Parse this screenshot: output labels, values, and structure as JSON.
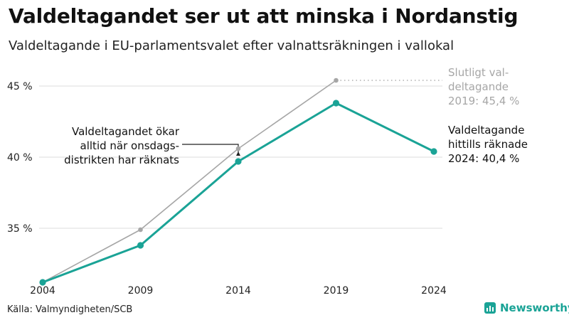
{
  "title": "Valdeltagandet ser ut att minska i Nordanstig",
  "subtitle": "Valdeltagande i EU-parlamentsvalet efter valnattsräkningen i vallokal",
  "source": "Källa: Valmyndigheten/SCB",
  "brand": "Newsworthy",
  "colors": {
    "current": "#1aa396",
    "final": "#a6a6a6",
    "grid": "#dddddd",
    "text": "#1a1a1a",
    "final_label": "#a6a6a6"
  },
  "chart_data": {
    "type": "line",
    "categories": [
      "2004",
      "2009",
      "2014",
      "2019",
      "2024"
    ],
    "ylim": [
      31,
      46.5
    ],
    "yticks": [
      35,
      40,
      45
    ],
    "ytick_labels": [
      "35 %",
      "40 %",
      "45 %"
    ],
    "grid": true,
    "series": [
      {
        "key": "final",
        "values": [
          31.2,
          34.9,
          40.6,
          45.4,
          null
        ]
      },
      {
        "key": "current",
        "values": [
          31.2,
          33.8,
          39.7,
          43.8,
          40.4
        ]
      }
    ],
    "annotations": {
      "final_end": [
        "Slutligt val-",
        "deltagande",
        "2019: 45,4 %"
      ],
      "current_end": [
        "Valdeltagande",
        "hittills räknade",
        "2024: 40,4 %"
      ],
      "wednesday_note": [
        "Valdeltagandet ökar",
        "alltid när onsdags-",
        "distrikten har räknats"
      ]
    }
  }
}
